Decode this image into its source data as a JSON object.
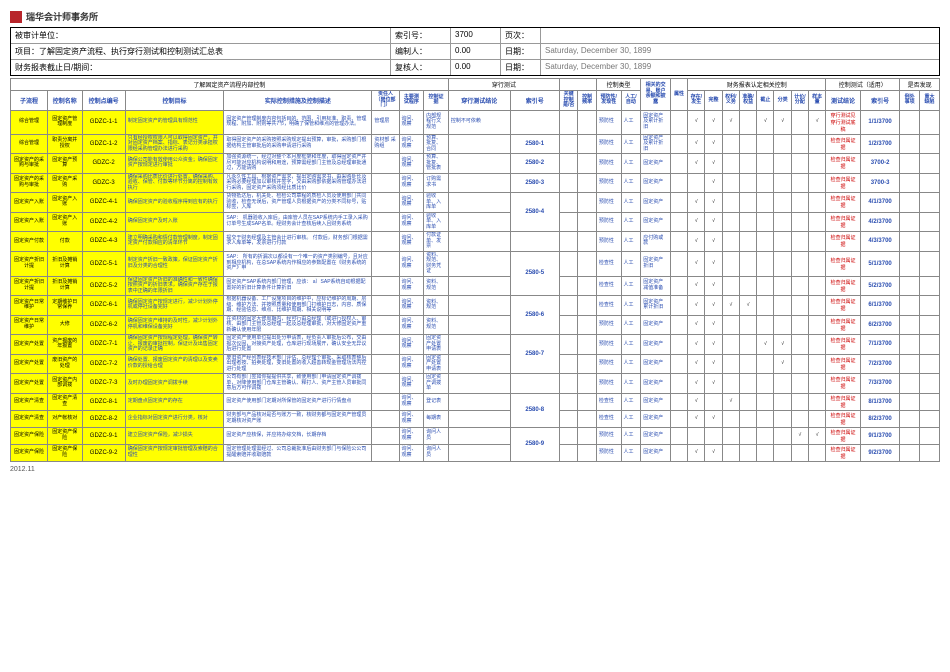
{
  "logo": "瑞华会计师事务所",
  "header": {
    "r1l": "被审计单位：",
    "r1m1": "索引号：",
    "r1m2": "3700",
    "r1m3": "页次：",
    "r2l": "项目：了解固定资产流程、执行穿行测试和控制测试汇总表",
    "r2m1": "编制人：",
    "r2m2": "0.00",
    "r2m3": "日期：",
    "r2r": "Saturday, December 30, 1899",
    "r3l": "财务报表截止日/期间：",
    "r3m1": "复核人：",
    "r3m2": "0.00",
    "r3m3": "日期：",
    "r3r": "Saturday, December 30, 1899"
  },
  "groups": {
    "g1": "了解固定资产流程内部控制",
    "g2": "穿行测试",
    "g3": "控制类型",
    "g4": "",
    "g5": "财务报表认定相关控制",
    "g6": "控制测试（适用）",
    "g7": "是否发现"
  },
  "cols": {
    "sub": "子流程",
    "name": "控制名称",
    "code": "控制点编号",
    "obj": "控制目标",
    "act": "实际控制措施及控制描述",
    "resp": "责任人（岗位部门）",
    "conf": "主要测试程序",
    "test": "控制证据",
    "wt": "穿行测试结论",
    "idx": "索引号",
    "kc": "关键控制 是/否",
    "freq": "控制频率",
    "prev": "预防性/发现性",
    "auto": "人工/自动",
    "rely": "相关的交易、账户余额和披露",
    "attr": "属性",
    "ex": "存在/发生",
    "comp": "完整",
    "acc": "准确/权益",
    "cut": "截止",
    "cls": "分类",
    "val": "计价/分配",
    "test2": "测试结论",
    "idx2": "索引号",
    "out": "例外事项",
    "maj": "重大缺陷"
  },
  "prev": "预防性",
  "chk": "检查性",
  "man": "人工",
  "fa": "固定资产",
  "faa": "固定资产及累计折旧",
  "fam": "固定资产减值准备",
  "far": "应付职工薪酬",
  "tick": "√",
  "test_wt": "穿行测试见穿行测试底稿",
  "test_ct": "检查归属证据",
  "rows": [
    {
      "sub": "综合管理",
      "name": "固定资产管理制度",
      "code": "GDZC-1-1",
      "obj": "制定固定资产的管理具有规范性",
      "act": "固定资产管理制度内容包括目的、范围、引用标准、职责、管理规程、附加、附则等共7节，明确了保管和维点的管理办法。",
      "resp": "管理层",
      "conf": "询问、观察",
      "test": "内部规程行文规范",
      "wt": "控制不可依赖",
      "idx": "",
      "prev": "预防性",
      "auto": "人工",
      "rely": "固定资产及累计折旧",
      "ticks": [
        1,
        1,
        1,
        0,
        1,
        1,
        0,
        1,
        1
      ],
      "test2": "穿行测试见穿行测试底稿",
      "idx2": "1/1/3700"
    },
    {
      "sub": "综合管理",
      "name": "职责分离并授权",
      "code": "GDZC-1-2",
      "obj": "只有经授权权限人可以取得固定资产，并对固定资产档案、指标、表记分类承担权限经采购管理办法进行采购",
      "act": "取得固定资产的采购按照采购规定提出预算，审批，采购部门根据结构主管审批后的采购申请进行采购",
      "resp": "资材部\n采购组",
      "conf": "询问、观察",
      "test": "预算、批复、合同",
      "wt": "",
      "idx": "2580-1",
      "prev": "预防性",
      "auto": "人工",
      "rely": "固定资产及累计折旧",
      "ticks": [
        1,
        1,
        0,
        0,
        0,
        0,
        0,
        0,
        0
      ],
      "test2": "检查归属证据",
      "idx2": "1/2/3700"
    },
    {
      "sub": "固定资产的采购与审批",
      "name": "固定资产预算",
      "code": "GDZC-2",
      "obj": "确保公司能有效使用公众资金；确保固定资产按规定进行审批",
      "act": "加强资源统一，经过对整个本月度框架和年度，取得固定资产并尽可能对应机构说明和用途，预算需经部门主管及总经理审批通过，方能请购",
      "resp": "",
      "conf": "询问、观察",
      "test": "预算、批复、管批表",
      "wt": "",
      "idx": "2580-2",
      "prev": "预防性",
      "auto": "人工",
      "rely": "固定资产",
      "ticks": [
        1,
        1,
        0,
        0,
        0,
        0,
        0,
        0,
        0
      ],
      "test2": "检查归属证据",
      "idx2": "3700-2"
    },
    {
      "sub": "固定资产的采购与审批",
      "name": "固定资产采购",
      "code": "GDZC-3",
      "obj": "确保采购比质比价进行处置，确保采购、验收、保管、付款等环节分离的控制有效执行",
      "act": "凡永久性工具、根据资产需求，提出定购需求书，由采购处长及采购必要经理加以审核并签字，交由采购部依据采购管理办法进行采购，固定资产采购须经比质比价",
      "resp": "",
      "conf": "询问、观察",
      "test": "订购需求书",
      "wt": "",
      "idx": "2580-3",
      "prev": "预防性",
      "auto": "人工",
      "rely": "固定资产",
      "ticks": [
        0,
        1,
        0,
        0,
        0,
        0,
        0,
        0,
        0
      ],
      "test2": "检查归属证据",
      "idx2": "3700-3"
    },
    {
      "sub": "固定资产入账",
      "name": "固定资产入账",
      "code": "GDZC-4-1",
      "obj": "确保固定资产的验收程序得到应有的执行",
      "act": "货物抵达后，机关处、检检公司章程的质检人员及使用部门共同验收，检查无误后，资产管理人员根据资产的分类不同标号，贴标签，入库",
      "resp": "",
      "conf": "询问、观察",
      "test": "验收单、入库单",
      "wt": "",
      "idx": "2580-4",
      "prev": "预防性",
      "auto": "人工",
      "rely": "固定资产",
      "ticks": [
        1,
        1,
        0,
        0,
        0,
        0,
        0,
        0,
        0
      ],
      "test2": "检查归属证据",
      "idx2": "4/1/3700"
    },
    {
      "sub": "固定资产入账",
      "name": "固定资产入账",
      "code": "GDZC-4-2",
      "obj": "确保固定资产及时入账",
      "act": "SAP：\n机器验收入库后，由库管人员在SAP系统内手工录入采购订单号生成SAP名单。经财务会计查核后续入且财务系统",
      "resp": "",
      "conf": "询问、观察",
      "test": "验收单、入库单",
      "wt": "",
      "idx": "2580-4",
      "prev": "预防性",
      "auto": "人工",
      "rely": "固定资产",
      "ticks": [
        1,
        1,
        0,
        0,
        0,
        0,
        0,
        0,
        0
      ],
      "test2": "检查归属证据",
      "idx2": "4/2/3700"
    },
    {
      "sub": "固定资产付款",
      "name": "付款",
      "code": "GDZC-4-3",
      "obj": "建立明确采购和情付款管理制度，制定固定资产付款相应的清单环节",
      "act": "提交于财务经理及主管会计进行审核。\n付款后，财务部门根据需求人库单等，发票进行付款",
      "resp": "",
      "conf": "询问、观察",
      "test": "付款证单、发票",
      "wt": "",
      "idx": "",
      "prev": "预防性",
      "auto": "人工",
      "rely": "应付购或款",
      "ticks": [
        1,
        1,
        0,
        0,
        0,
        0,
        0,
        0,
        0
      ],
      "test2": "检查归属证据",
      "idx2": "4/3/3700"
    },
    {
      "sub": "固定资产折旧计提",
      "name": "折旧及摊销计算",
      "code": "GDZC-5-1",
      "obj": "制定资产折旧一致政策，保证固定资产折旧及分类的合理性",
      "act": "SAP：\n所有的折漏次以都设有一个唯一的资产类别编号，且对应到相应机构，在总SAP系统内作相应的参数配置在《财务系统的资产》申",
      "resp": "",
      "conf": "询问、观察",
      "test": "资料、规范、财务凭证",
      "wt": "",
      "idx": "2580-5",
      "prev": "检查性",
      "auto": "人工",
      "rely": "固定资产折旧",
      "ticks": [
        1,
        1,
        0,
        0,
        0,
        0,
        0,
        0,
        0
      ],
      "test2": "检查归属证据",
      "idx2": "5/1/3700"
    },
    {
      "sub": "固定资产折旧计提",
      "name": "折旧及摊销计算",
      "code": "GDZC-5-2",
      "obj": "保证固定资产折旧的准确性和一致性确保按照资产的折旧表求，确保资产存在于报表中正确的年限折旧",
      "act": "固定资产SAP系统内部门管理，应该：\na）SAP系统自动根据配置好的折旧计算条件计算折旧",
      "resp": "",
      "conf": "询问、观察",
      "test": "资料、规范",
      "wt": "",
      "idx": "2580-5",
      "prev": "检查性",
      "auto": "人工",
      "rely": "固定资产减值准备",
      "ticks": [
        1,
        1,
        0,
        0,
        0,
        0,
        0,
        0,
        0
      ],
      "test2": "检查归属证据",
      "idx2": "5/2/3700"
    },
    {
      "sub": "固定资产日常维护",
      "name": "定期维护日常保养",
      "code": "GDZC-6-1",
      "obj": "确保固定资产按规定进行，减少计划外停机或停社设备完好",
      "act": "根据机器设备、工厂设施项目的维护中，应标记维护的周期、层级、维护方法、并按照质量和使用部门打维护日志，内容、质保期、经验信息、维点、比维护周期、相关说明等",
      "resp": "",
      "conf": "询问、观察",
      "test": "资料、规范",
      "wt": "",
      "idx": "2580-6",
      "prev": "检查性",
      "auto": "人工",
      "rely": "固定资产累计折旧",
      "ticks": [
        1,
        1,
        1,
        1,
        0,
        0,
        0,
        0,
        0
      ],
      "test2": "检查归属证据",
      "idx2": "6/1/3700"
    },
    {
      "sub": "固定资产日常维护",
      "name": "大修",
      "code": "GDZC-6-2",
      "obj": "确保固定资产维持的及时性，减少计划外停机和维保设备完好",
      "act": "在资材的固定大修周期内，经可行由总经理（或进行授权人、审核、由部门主管及总经理一起及总经理审批，对大修固定资产重新确认使用年限",
      "resp": "",
      "conf": "询问、观察",
      "test": "资料、规范",
      "wt": "",
      "idx": "2580-6",
      "prev": "预防性",
      "auto": "人工",
      "rely": "固定资产",
      "ticks": [
        1,
        1,
        0,
        0,
        0,
        0,
        0,
        0,
        0
      ],
      "test2": "检查归属证据",
      "idx2": "6/2/3700"
    },
    {
      "sub": "固定资产处置",
      "name": "资产报废的年报置",
      "code": "GDZC-7-1",
      "obj": "确保固定资产按规程定处理，确保资产转让、报废的审批控制，保证计及出售固定资产的记录正确",
      "act": "固定资产使用单位提出处分申请表，经负责人审批后公布，交由报次仪固，对接资产处理，仓库进行现场展开，确认安全无异议后进行处置",
      "resp": "",
      "conf": "询问、观察",
      "test": "固定资产处置申请表",
      "wt": "",
      "idx": "2580-7",
      "prev": "预防性",
      "auto": "人工",
      "rely": "固定资产",
      "ticks": [
        1,
        1,
        0,
        0,
        1,
        1,
        0,
        0,
        0
      ],
      "test2": "检查归属证据",
      "idx2": "7/1/3700"
    },
    {
      "sub": "固定资产处置",
      "name": "废旧资产的处理",
      "code": "GDZC-7-2",
      "obj": "确保处置、报废固定资产的清理以及变卖价款的授给合理",
      "act": "废旧资产经列表经技术部门评估、总经理个审批、采取核表整后出理者按、拍卖处理，变旧处置的收入超善转现金管理功法内控进行处理",
      "resp": "",
      "conf": "询问、观察",
      "test": "固定资产处置申请表",
      "wt": "",
      "idx": "2580-7",
      "prev": "预防性",
      "auto": "人工",
      "rely": "固定资产",
      "ticks": [
        1,
        1,
        0,
        0,
        0,
        1,
        0,
        0,
        0
      ],
      "test2": "检查归属证据",
      "idx2": "7/2/3700"
    },
    {
      "sub": "固定资产处置",
      "name": "固定资产内部调拨",
      "code": "GDZC-7-3",
      "obj": "及时办理固定资产调拨手续",
      "act": "公司有部门签如你提提供共享，致使用部门申请固定资产调拨单，对降使用部门仓库主管确认、释打人、资产主管人员审批同意后方可作调拨",
      "resp": "",
      "conf": "询问、观察",
      "test": "固定资产调拨单",
      "wt": "",
      "idx": "",
      "prev": "预防性",
      "auto": "人工",
      "rely": "固定资产",
      "ticks": [
        1,
        1,
        0,
        0,
        0,
        0,
        0,
        0,
        0
      ],
      "test2": "检查归属证据",
      "idx2": "7/3/3700"
    },
    {
      "sub": "固定资产清查",
      "name": "固定资产清查",
      "code": "GDZC-8-1",
      "obj": "定期盘点固定资产的存在",
      "act": "固定资产使用部门定期对所保管的固定资产进行行情盘点",
      "resp": "",
      "conf": "询问、观察",
      "test": "登记表",
      "wt": "",
      "idx": "2580-8",
      "prev": "检查性",
      "auto": "人工",
      "rely": "固定资产",
      "ticks": [
        1,
        0,
        1,
        0,
        0,
        0,
        0,
        0,
        0
      ],
      "test2": "检查归属证据",
      "idx2": "8/1/3700"
    },
    {
      "sub": "固定资产清查",
      "name": "对产帐核对",
      "code": "GDZC-8-2",
      "obj": "企业指标对固定资产进行分类，核对",
      "act": "财务部与产品核对是否与账方一致，核财务都与固定资产管理员定期核对资产账",
      "resp": "",
      "conf": "询问、观察",
      "test": "每期表",
      "wt": "",
      "idx": "2580-8",
      "prev": "检查性",
      "auto": "人工",
      "rely": "固定资产",
      "ticks": [
        1,
        1,
        0,
        0,
        0,
        0,
        0,
        0,
        0
      ],
      "test2": "检查归属证据",
      "idx2": "8/2/3700"
    },
    {
      "sub": "固定资产保险",
      "name": "固定资产保险",
      "code": "GDZC-9-1",
      "obj": "建立固定资产保险，减少损失",
      "act": "固定资产应核保，并应将办综交档，长期存档",
      "resp": "",
      "conf": "询问、观察",
      "test": "询问人员",
      "wt": "",
      "idx": "2580-9",
      "prev": "预防性",
      "auto": "人工",
      "rely": "固定资产",
      "ticks": [
        0,
        0,
        0,
        0,
        0,
        0,
        1,
        1,
        1
      ],
      "test2": "检查归属证据",
      "idx2": "9/1/3700"
    },
    {
      "sub": "固定资产保险",
      "name": "固定资产保险",
      "code": "GDZC-9-2",
      "obj": "确保固定资产按规定审批管理及索赔的合理性",
      "act": "固定管理处理需经过、公司总裁批准后由财务部门与保险公公司提醒索赔并收取赔款",
      "resp": "",
      "conf": "询问、观察",
      "test": "询问人员",
      "wt": "",
      "idx": "2580-9",
      "prev": "预防性",
      "auto": "人工",
      "rely": "固定资产",
      "ticks": [
        1,
        1,
        0,
        0,
        0,
        0,
        0,
        0,
        0
      ],
      "test2": "检查归属证据",
      "idx2": "9/2/3700"
    }
  ],
  "footer": "2012.11"
}
